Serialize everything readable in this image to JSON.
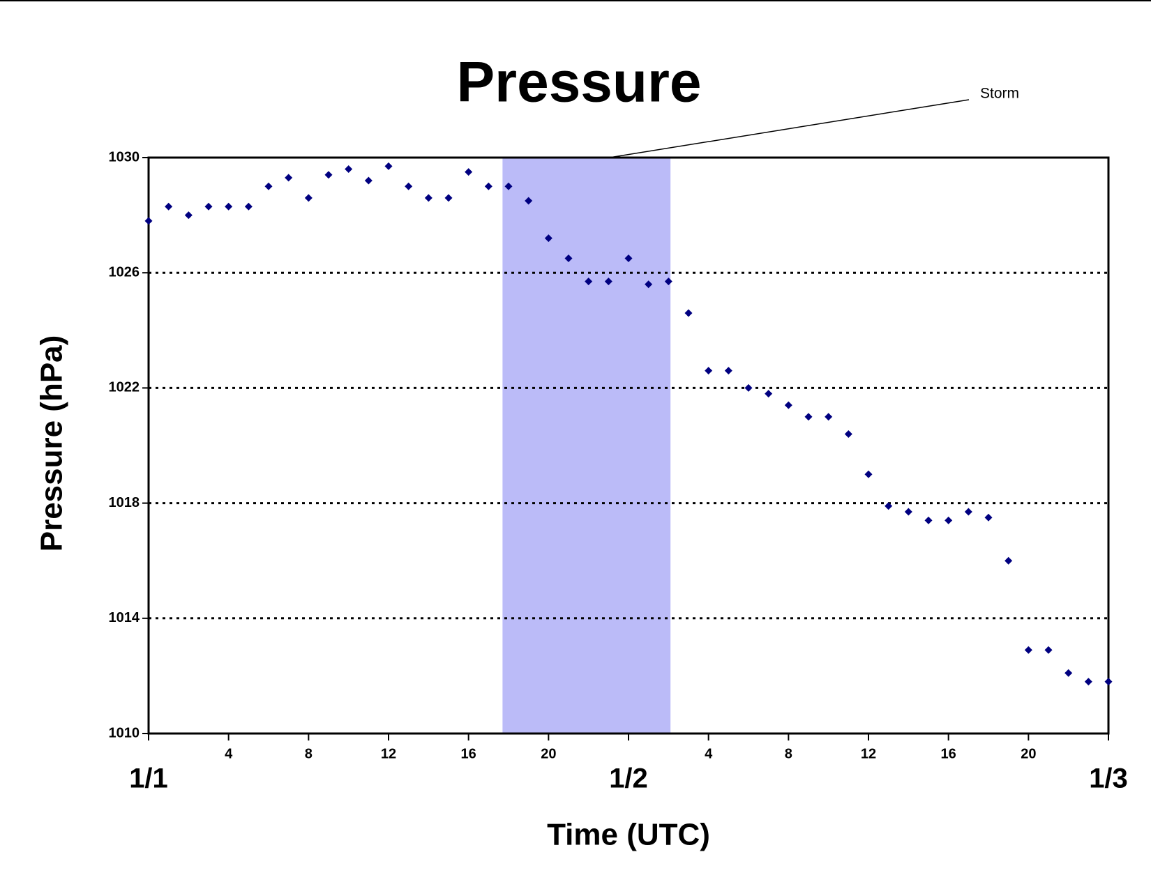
{
  "chart_data": {
    "type": "scatter",
    "title": "Pressure",
    "xlabel": "Time (UTC)",
    "ylabel": "Pressure (hPa)",
    "x": [
      0,
      1,
      2,
      3,
      4,
      5,
      6,
      7,
      8,
      9,
      10,
      11,
      12,
      13,
      14,
      15,
      16,
      17,
      18,
      19,
      20,
      21,
      22,
      23,
      24,
      25,
      26,
      27,
      28,
      29,
      30,
      31,
      32,
      33,
      34,
      35,
      36,
      37,
      38,
      39,
      40,
      41,
      42,
      43,
      44,
      45,
      46,
      47,
      48
    ],
    "values": [
      1027.8,
      1028.3,
      1028.0,
      1028.3,
      1028.3,
      1028.3,
      1029.0,
      1029.3,
      1028.6,
      1029.4,
      1029.6,
      1029.2,
      1029.7,
      1029.0,
      1028.6,
      1028.6,
      1029.5,
      1029.0,
      1029.0,
      1028.5,
      1027.2,
      1026.5,
      1025.7,
      1025.7,
      1026.5,
      1025.6,
      1025.7,
      1024.6,
      1022.6,
      1022.6,
      1022.0,
      1021.8,
      1021.4,
      1021.0,
      1021.0,
      1020.4,
      1019.0,
      1017.9,
      1017.7,
      1017.4,
      1017.4,
      1017.7,
      1017.5,
      1016.0,
      1012.9,
      1012.9,
      1012.1,
      1011.8,
      1011.8
    ],
    "color": "#000080",
    "xlim": [
      0,
      48
    ],
    "xticks": [
      4,
      8,
      12,
      16,
      20,
      {
        "value": 28,
        "label": "4"
      },
      {
        "value": 32,
        "label": "8"
      },
      {
        "value": 36,
        "label": "12"
      },
      {
        "value": 40,
        "label": "16"
      },
      {
        "value": 44,
        "label": "20"
      }
    ],
    "date_ticks": [
      {
        "value": 0,
        "label": "1/1"
      },
      {
        "value": 24,
        "label": "1/2"
      },
      {
        "value": 48,
        "label": "1/3"
      }
    ],
    "ylim": [
      1010,
      1030
    ],
    "yticks": [
      1010,
      1014,
      1018,
      1022,
      1026,
      1030
    ],
    "grid": true,
    "shade": {
      "x": [
        17.7,
        26.1
      ],
      "color": "#bbbbf8"
    },
    "annotation": {
      "text": "Storm",
      "x": 23.05
    }
  }
}
